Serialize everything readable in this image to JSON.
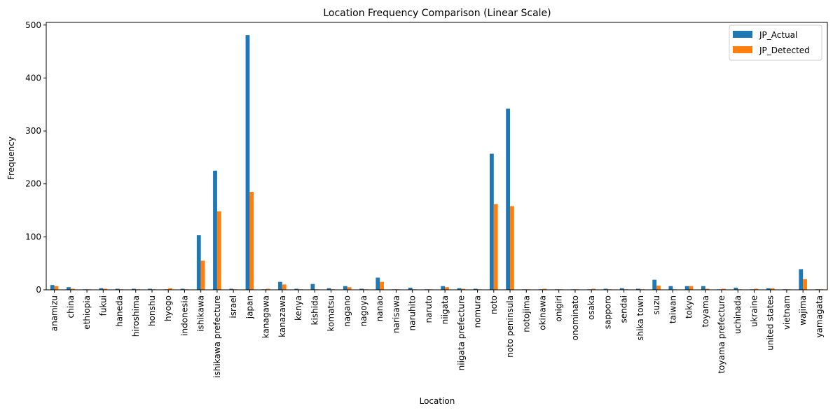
{
  "chart_data": {
    "type": "bar",
    "title": "Location Frequency Comparison (Linear Scale)",
    "xlabel": "Location",
    "ylabel": "Frequency",
    "ylim": [
      0,
      505
    ],
    "yticks": [
      0,
      100,
      200,
      300,
      400,
      500
    ],
    "grid": false,
    "legend_position": "top-right",
    "categories": [
      "anamizu",
      "china",
      "ethiopia",
      "fukui",
      "haneda",
      "hiroshima",
      "honshu",
      "hyogo",
      "indonesia",
      "ishikawa",
      "ishikawa prefecture",
      "israel",
      "japan",
      "kanagawa",
      "kanazawa",
      "kenya",
      "kishida",
      "komatsu",
      "nagano",
      "nagoya",
      "nanao",
      "narisawa",
      "naruhito",
      "naruto",
      "niigata",
      "niigata prefecture",
      "nomura",
      "noto",
      "noto peninsula",
      "notojima",
      "okinawa",
      "onigiri",
      "onominato",
      "osaka",
      "sapporo",
      "sendai",
      "shika town",
      "suzu",
      "taiwan",
      "tokyo",
      "toyama",
      "toyama prefecture",
      "uchinada",
      "ukraine",
      "united states",
      "vietnam",
      "wajima",
      "yamagata"
    ],
    "series": [
      {
        "name": "JP_Actual",
        "color": "#1f77b4",
        "values": [
          9,
          5,
          1,
          3,
          2,
          2,
          2,
          1,
          2,
          103,
          225,
          2,
          481,
          1,
          15,
          2,
          11,
          3,
          7,
          2,
          23,
          1,
          4,
          1,
          7,
          3,
          2,
          257,
          342,
          1,
          1,
          1,
          1,
          1,
          2,
          3,
          2,
          19,
          7,
          7,
          7,
          1,
          4,
          1,
          3,
          1,
          39,
          1
        ]
      },
      {
        "name": "JP_Detected",
        "color": "#ff7f0e",
        "values": [
          7,
          2,
          1,
          2,
          1,
          1,
          1,
          3,
          1,
          55,
          148,
          1,
          185,
          2,
          10,
          1,
          1,
          1,
          5,
          1,
          15,
          1,
          1,
          1,
          5,
          2,
          1,
          162,
          158,
          1,
          2,
          1,
          1,
          2,
          1,
          1,
          1,
          8,
          1,
          7,
          2,
          2,
          1,
          2,
          3,
          1,
          20,
          1
        ]
      }
    ]
  }
}
